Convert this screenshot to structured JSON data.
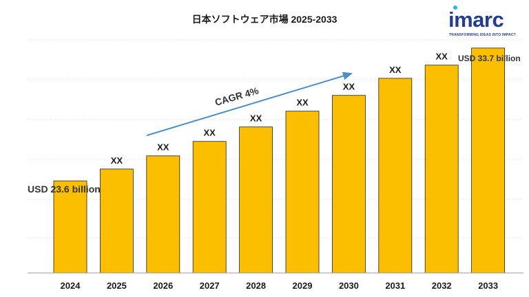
{
  "brand": {
    "name": "imarc",
    "tagline": "TRANSFORMING IDEAS INTO IMPACT",
    "primary_color": "#1f3d99",
    "accent_color": "#29b6e8"
  },
  "chart_data": {
    "type": "bar",
    "title": "日本ソフトウェア市場  2025-2033",
    "categories": [
      "2024",
      "2025",
      "2026",
      "2027",
      "2028",
      "2029",
      "2030",
      "2031",
      "2032",
      "2033"
    ],
    "values": [
      23.6,
      24.5,
      25.5,
      26.6,
      27.7,
      28.9,
      30.1,
      31.4,
      32.4,
      33.7
    ],
    "data_labels": [
      "",
      "XX",
      "XX",
      "XX",
      "XX",
      "XX",
      "XX",
      "XX",
      "XX",
      ""
    ],
    "ylim": [
      16.6,
      35
    ],
    "bar_color": "#fbbf00",
    "grid": true,
    "annotations": {
      "start_value": "USD 23.6 billion",
      "end_value": "USD 33.7 billion",
      "cagr": "CAGR 4%",
      "cagr_arrow_color": "#4a90c8"
    }
  }
}
